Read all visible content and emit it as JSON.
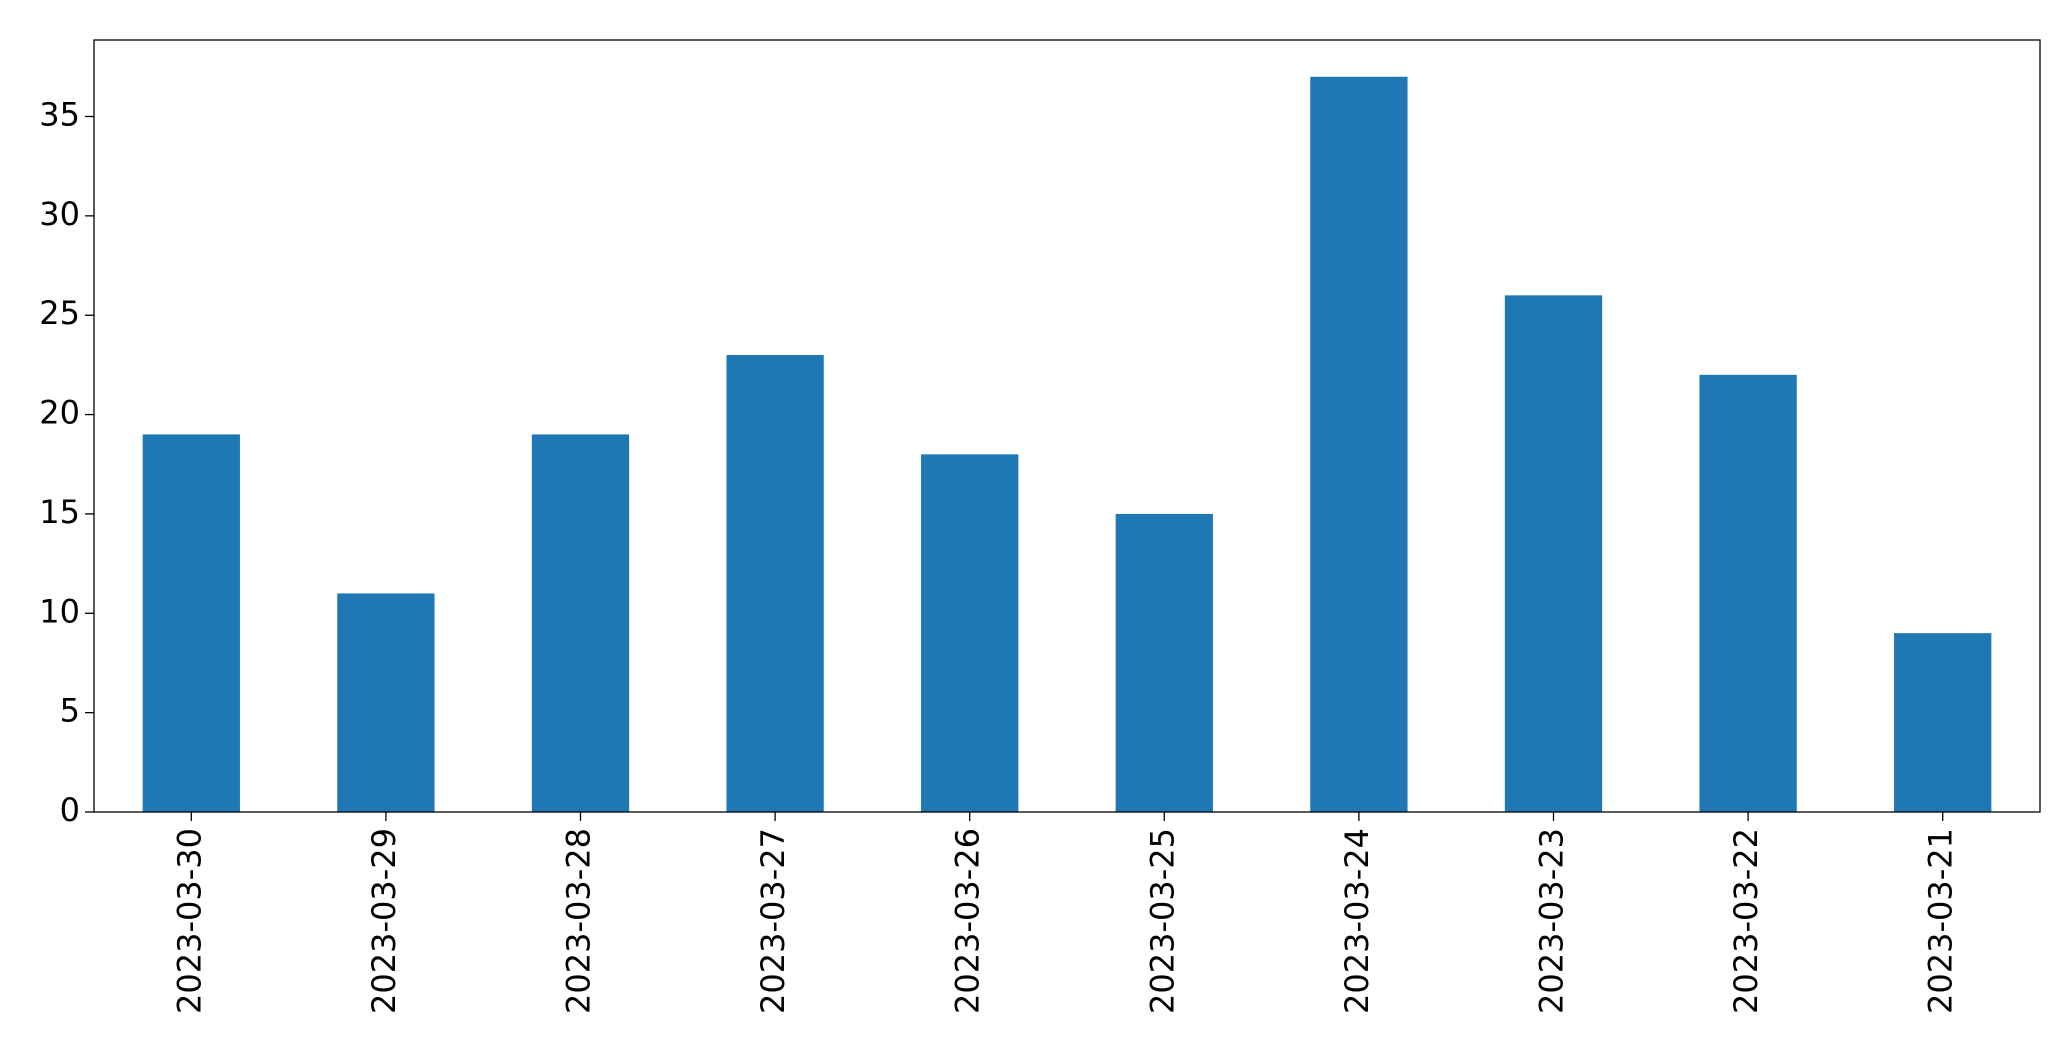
{
  "chart_data": {
    "type": "bar",
    "categories": [
      "2023-03-30",
      "2023-03-29",
      "2023-03-28",
      "2023-03-27",
      "2023-03-26",
      "2023-03-25",
      "2023-03-24",
      "2023-03-23",
      "2023-03-22",
      "2023-03-21"
    ],
    "values": [
      19,
      11,
      19,
      23,
      18,
      15,
      37,
      26,
      22,
      9
    ],
    "color": "#1f77b4",
    "ylim": [
      0,
      38.85
    ],
    "yticks": [
      0,
      5,
      10,
      15,
      20,
      25,
      30,
      35
    ],
    "grid": false
  }
}
